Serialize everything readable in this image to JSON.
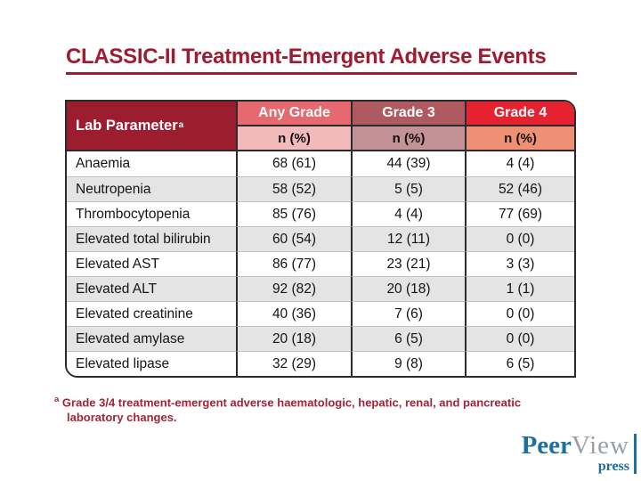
{
  "slide": {
    "title": "CLASSIC-II Treatment-Emergent Adverse Events",
    "footnote": {
      "marker": "a",
      "line1": "Grade 3/4 treatment-emergent adverse haematologic, hepatic, renal, and pancreatic",
      "line2": "laboratory changes."
    }
  },
  "table": {
    "row_header": "Lab Parameter",
    "row_header_sup": "a",
    "columns": [
      {
        "label": "Any Grade",
        "sub": "n (%)"
      },
      {
        "label": "Grade 3",
        "sub": "n (%)"
      },
      {
        "label": "Grade 4",
        "sub": "n (%)"
      }
    ],
    "rows": [
      {
        "label": "Anaemia",
        "any_grade": "68 (61)",
        "grade3": "44 (39)",
        "grade4": "4 (4)"
      },
      {
        "label": "Neutropenia",
        "any_grade": "58 (52)",
        "grade3": "5 (5)",
        "grade4": "52 (46)"
      },
      {
        "label": "Thrombocytopenia",
        "any_grade": "85 (76)",
        "grade3": "4 (4)",
        "grade4": "77 (69)"
      },
      {
        "label": "Elevated total bilirubin",
        "any_grade": "60 (54)",
        "grade3": "12 (11)",
        "grade4": "0 (0)"
      },
      {
        "label": "Elevated AST",
        "any_grade": "86 (77)",
        "grade3": "23 (21)",
        "grade4": "3 (3)"
      },
      {
        "label": "Elevated ALT",
        "any_grade": "92 (82)",
        "grade3": "20 (18)",
        "grade4": "1 (1)"
      },
      {
        "label": "Elevated creatinine",
        "any_grade": "40 (36)",
        "grade3": "7 (6)",
        "grade4": "0 (0)"
      },
      {
        "label": "Elevated amylase",
        "any_grade": "20 (18)",
        "grade3": "6 (5)",
        "grade4": "0 (0)"
      },
      {
        "label": "Elevated lipase",
        "any_grade": "32 (29)",
        "grade3": "9 (8)",
        "grade4": "6 (5)"
      }
    ]
  },
  "logo": {
    "part1": "Peer",
    "part2": "View",
    "part3": "press"
  },
  "colors": {
    "title_red": "#9E1C31",
    "header_maroon": "#9C1D2E",
    "any_grade_header": "#E5696E",
    "grade3_header": "#AF5A60",
    "grade4_header": "#E62230",
    "any_grade_subheader": "#F2BABB",
    "grade3_subheader": "#C29296",
    "grade4_subheader": "#EF8F73",
    "row_stripe_gray": "#E4E4E4",
    "table_border": "#2b2b2b",
    "footnote_red": "#A32438",
    "logo_blue": "#1D6F9E",
    "logo_gray": "#98A0A5"
  }
}
